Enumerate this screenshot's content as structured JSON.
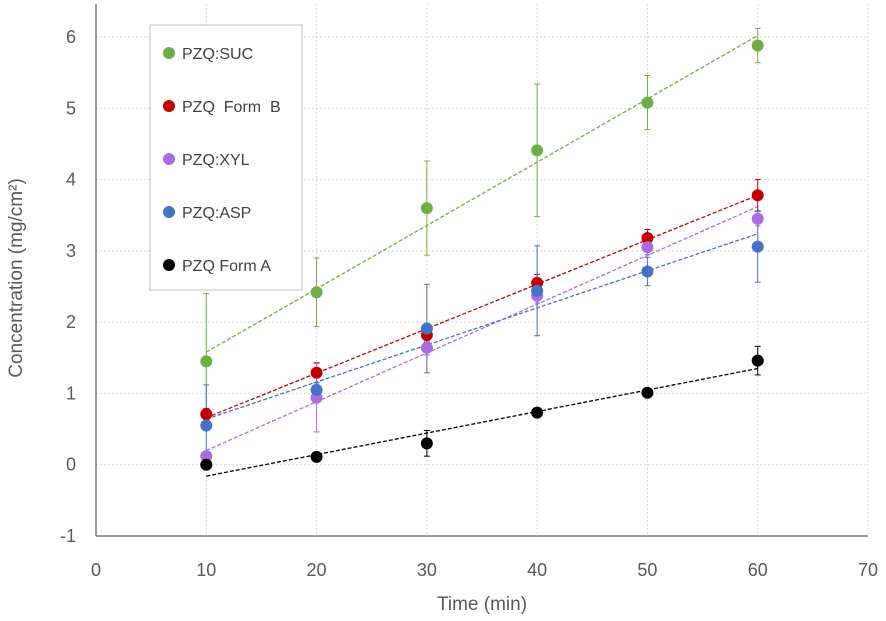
{
  "chart_data": {
    "type": "scatter",
    "xlabel": "Time (min)",
    "ylabel": "Concentration (mg/cm²)",
    "xlim": [
      0,
      70
    ],
    "ylim": [
      -1,
      6.5
    ],
    "x_ticks": [
      0,
      10,
      20,
      30,
      40,
      50,
      60,
      70
    ],
    "y_ticks": [
      -1,
      0,
      1,
      2,
      3,
      4,
      5,
      6
    ],
    "grid": true,
    "legend_position": "top-left",
    "series": [
      {
        "name": "PZQ:SUC",
        "color": "#70ad47",
        "x": [
          10,
          20,
          30,
          40,
          50,
          60
        ],
        "y": [
          1.45,
          2.42,
          3.6,
          4.41,
          5.08,
          5.88
        ],
        "error": [
          0.95,
          0.48,
          0.66,
          0.93,
          0.38,
          0.24
        ],
        "trendline": {
          "from": [
            10,
            1.58
          ],
          "to": [
            60,
            6.02
          ]
        }
      },
      {
        "name": "PZQ  Form  B",
        "color": "#c00000",
        "x": [
          10,
          20,
          30,
          40,
          50,
          60
        ],
        "y": [
          0.71,
          1.29,
          1.82,
          2.55,
          3.18,
          3.78
        ],
        "error": [
          0.08,
          0.14,
          0.1,
          0.12,
          0.12,
          0.22
        ],
        "trendline": {
          "from": [
            10,
            0.66
          ],
          "to": [
            60,
            3.78
          ]
        }
      },
      {
        "name": "PZQ:XYL",
        "color": "#a86ee0",
        "x": [
          10,
          20,
          30,
          40,
          50,
          60
        ],
        "y": [
          0.12,
          0.94,
          1.64,
          2.37,
          3.05,
          3.45
        ],
        "error": [
          0.06,
          0.48,
          0.1,
          0.1,
          0.1,
          0.1
        ],
        "trendline": {
          "from": [
            10,
            0.2
          ],
          "to": [
            60,
            3.62
          ]
        }
      },
      {
        "name": "PZQ:ASP",
        "color": "#4472c4",
        "x": [
          10,
          20,
          30,
          40,
          50,
          60
        ],
        "y": [
          0.55,
          1.05,
          1.91,
          2.44,
          2.71,
          3.06
        ],
        "error": [
          0.57,
          0.1,
          0.62,
          0.63,
          0.2,
          0.5
        ],
        "trendline": {
          "from": [
            10,
            0.64
          ],
          "to": [
            60,
            3.24
          ]
        }
      },
      {
        "name": "PZQ Form A",
        "color": "#000000",
        "x": [
          10,
          20,
          30,
          40,
          50,
          60
        ],
        "y": [
          0.0,
          0.11,
          0.3,
          0.73,
          1.01,
          1.46
        ],
        "error": [
          0.02,
          0.04,
          0.18,
          0.03,
          0.03,
          0.2
        ],
        "trendline": {
          "from": [
            10,
            -0.16
          ],
          "to": [
            60,
            1.35
          ]
        }
      }
    ]
  }
}
